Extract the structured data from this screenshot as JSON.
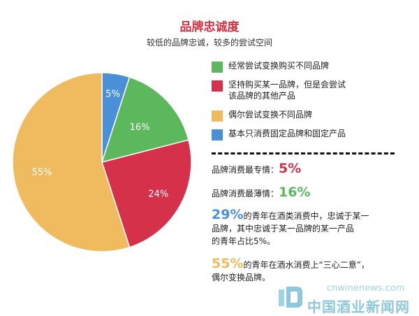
{
  "header": {
    "title": "品牌忠诚度",
    "subtitle": "较低的品牌忠诚，较多的尝试空间"
  },
  "chart_data": {
    "type": "pie",
    "title": "品牌忠诚度",
    "subtitle": "较低的品牌忠诚，较多的尝试空间",
    "slices": [
      {
        "label": "基本只消费固定品牌和固定产品",
        "value": 5,
        "display": "5%",
        "color": "#4a90d9"
      },
      {
        "label": "经常尝试变换购买不同品牌",
        "value": 16,
        "display": "16%",
        "color": "#5cb85c"
      },
      {
        "label": "坚持购买某一品牌，但是会尝试该品牌的其他产品",
        "value": 24,
        "display": "24%",
        "color": "#d6314b"
      },
      {
        "label": "偶尔尝试变换不同品牌",
        "value": 55,
        "display": "55%",
        "color": "#efbb5e"
      }
    ]
  },
  "legend": {
    "items": [
      {
        "lines": [
          "经常尝试变换购买不同品牌"
        ],
        "color": "#5cb85c"
      },
      {
        "lines": [
          "坚持购买某一品牌，但是会尝试",
          "该品牌的其他产品"
        ],
        "color": "#d6314b"
      },
      {
        "lines": [
          "偶尔尝试变换不同品牌"
        ],
        "color": "#efbb5e"
      },
      {
        "lines": [
          "基本只消费固定品牌和固定产品"
        ],
        "color": "#4a90d9"
      }
    ]
  },
  "stats": {
    "most_loyal_label": "品牌消费最专情：",
    "most_loyal_value": "5%",
    "least_loyal_label": "品牌消费最薄情：",
    "least_loyal_value": "16%"
  },
  "notes": {
    "n29_value": "29%",
    "n29_text_line1": "的青年在酒类消费中，忠诚于某一",
    "n29_text_line2": "品牌，其中忠诚于某一品牌的某一产品",
    "n29_text_line3": "的青年占比5%。",
    "n55_value": "55%",
    "n55_text_line1": "的青年在酒水消费上“三心二意”，",
    "n55_text_line2": "偶尔变换品牌。"
  },
  "colors": {
    "title": "#d6313f",
    "blue": "#4a90d9",
    "green": "#5cb85c",
    "red": "#d6314b",
    "orange": "#efbb5e"
  },
  "watermark": {
    "domain": "cnwinenews.com",
    "name": "中国酒业新闻网"
  }
}
